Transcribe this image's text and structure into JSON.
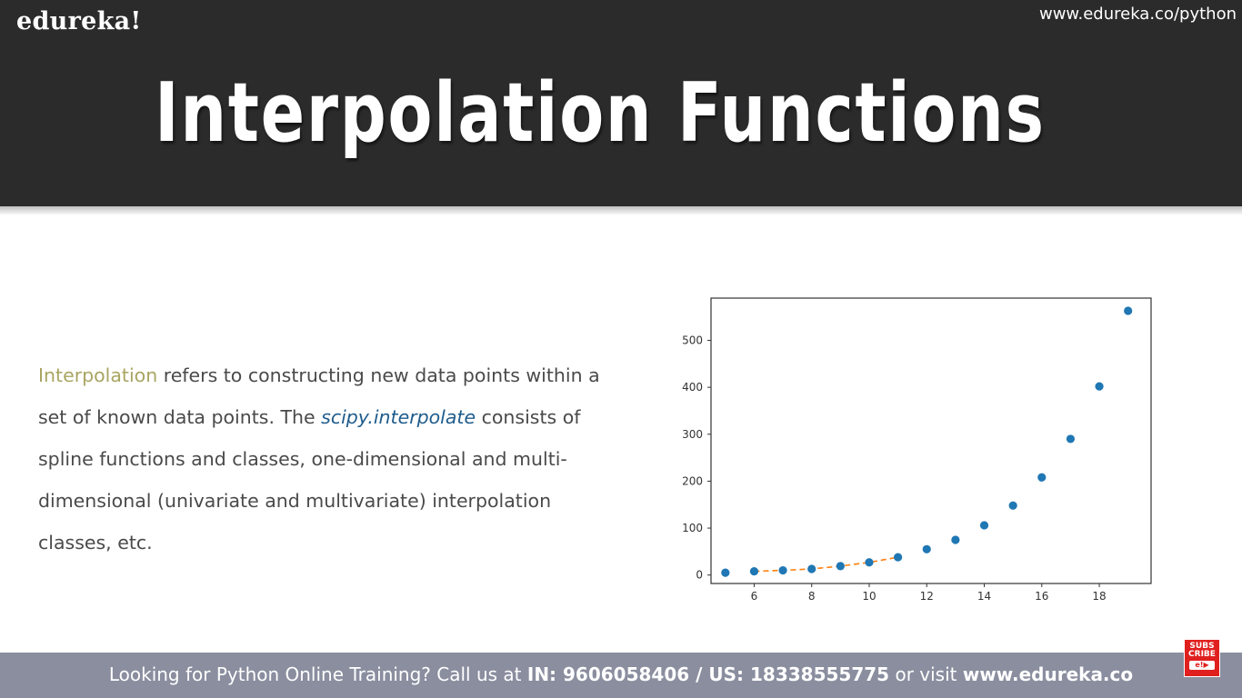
{
  "header": {
    "brand": "edureka!",
    "site_url": "www.edureka.co/python",
    "title": "Interpolation Functions"
  },
  "description": {
    "highlight": "Interpolation",
    "part1": " refers to constructing new data points within a set of known data points. The ",
    "module": "scipy.interpolate",
    "part2": " consists of spline functions and classes, one-dimensional and multi-dimensional (univariate and multivariate) interpolation classes, etc."
  },
  "footer": {
    "prefix": "Looking for Python Online Training? Call us at ",
    "phones": "IN: 9606058406 / US: 18338555775",
    "middle": " or visit ",
    "website": "www.edureka.co"
  },
  "subscribe": {
    "line1": "SUBS",
    "line2": "CRIBE",
    "badge": "e!▶"
  },
  "chart_data": {
    "type": "scatter",
    "xlim": [
      4.5,
      19.8
    ],
    "ylim": [
      -18,
      590
    ],
    "xticks": [
      6,
      8,
      10,
      12,
      14,
      16,
      18
    ],
    "yticks": [
      0,
      100,
      200,
      300,
      400,
      500
    ],
    "grid": false,
    "series": [
      {
        "kind": "scatter",
        "color": "#1f77b4",
        "x": [
          5,
          6,
          7,
          8,
          9,
          10,
          11,
          12,
          13,
          14,
          15,
          16,
          17,
          18,
          19
        ],
        "y": [
          5,
          8,
          10,
          13,
          19,
          27,
          38,
          55,
          75,
          106,
          148,
          208,
          290,
          402,
          563
        ]
      },
      {
        "kind": "line",
        "style": "dashed",
        "color": "#ff7f0e",
        "x": [
          6,
          7,
          8,
          9,
          10,
          11
        ],
        "y": [
          8,
          10,
          13,
          19,
          27,
          38
        ]
      }
    ]
  }
}
